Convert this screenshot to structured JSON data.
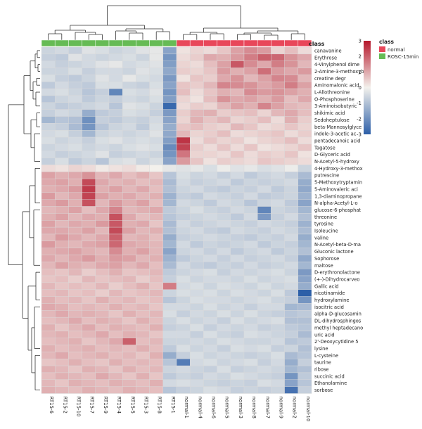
{
  "chart_data": {
    "type": "heatmap",
    "title": "",
    "annotation_label": "class",
    "annotation_legend_title": "class",
    "classes": [
      {
        "name": "normal",
        "color": "#e8475a"
      },
      {
        "name": "ROSC-15min",
        "color": "#66bb55"
      }
    ],
    "color_scale": {
      "min": -3,
      "max": 3,
      "ticks": [
        3,
        2,
        1,
        0,
        -1,
        -2,
        -3
      ],
      "low_color": "#2c5fa8",
      "mid_color": "#f3f1ec",
      "high_color": "#b5172b"
    },
    "columns": [
      "RT15-6",
      "RT15-2",
      "RT15-10",
      "RT15-7",
      "RT15-9",
      "RT15-4",
      "RT15-5",
      "RT15-3",
      "RT15-8",
      "RT15-1",
      "normal-1",
      "normal-4",
      "normal-6",
      "normal-5",
      "normal-3",
      "normal-8",
      "normal-7",
      "normal-9",
      "normal-2",
      "normal-10"
    ],
    "column_class": [
      "ROSC-15min",
      "ROSC-15min",
      "ROSC-15min",
      "ROSC-15min",
      "ROSC-15min",
      "ROSC-15min",
      "ROSC-15min",
      "ROSC-15min",
      "ROSC-15min",
      "ROSC-15min",
      "normal",
      "normal",
      "normal",
      "normal",
      "normal",
      "normal",
      "normal",
      "normal",
      "normal",
      "normal"
    ],
    "rows": [
      "canavanine",
      "Erythrose",
      "4-Vinylphenol dime",
      "2-Amine-3-methoxyb",
      "creatine degr",
      "Aminomalonic acid",
      "L-Allothreonine",
      "O-Phosphoserine",
      "3-Aminoisobutyric",
      "shikimic acid",
      "Sedoheptulose",
      "beta-Mannosylglyce",
      "indole-3-acetic ac",
      "pentadecanoic acid",
      "Tagatose",
      "D-Glyceric acid",
      "N-Acetyl-5-hydroxy",
      "4-Hydroxy-3-methox",
      "putrescine",
      "5-Methoxytryptamin",
      "5-Aminovaleric aci",
      "1,3-diaminopropane",
      "N-alpha-Acetyl-L-o",
      "glucose-6-phosphat",
      "threonine",
      "tyrosine",
      "Isoleucine",
      "valine",
      "N-Acetyl-beta-D-ma",
      "Gluconic lactone",
      "Sophorose",
      "maltose",
      "D-erythronolactone",
      "(+-)-Dihydrocarveo",
      "Gallic acid",
      "nicotinamide",
      "hydroxylamine",
      "isocitric acid",
      "alpha-D-glucosamin",
      "DL-dihydrosphingos",
      "methyl heptadecano",
      "uric acid",
      "2'-Deoxycytidine 5",
      "lysine",
      "L-cysteine",
      "taurine",
      "ribose",
      "succinic acid",
      "Ethanolamine",
      "sorbose"
    ],
    "values": [
      [
        -0.6,
        -0.5,
        -0.7,
        -0.3,
        -0.4,
        -0.6,
        -0.5,
        -0.3,
        -0.2,
        -1.6,
        0.2,
        0.4,
        0.3,
        0.6,
        1.1,
        1.4,
        1.2,
        0.4,
        0.7,
        0.3
      ],
      [
        -0.7,
        -0.8,
        -0.3,
        -0.5,
        -0.6,
        -0.5,
        -0.4,
        -0.6,
        -0.2,
        -1.9,
        0.3,
        0.5,
        1.0,
        0.9,
        1.2,
        1.6,
        2.0,
        1.9,
        1.3,
        1.0
      ],
      [
        -0.5,
        -0.7,
        -0.6,
        -0.5,
        -0.3,
        -0.2,
        -0.5,
        -0.4,
        -0.3,
        -1.7,
        0.4,
        0.3,
        0.7,
        1.1,
        2.1,
        1.4,
        1.0,
        1.6,
        1.3,
        0.8
      ],
      [
        -0.6,
        -0.6,
        -0.4,
        -0.7,
        -0.5,
        -0.5,
        -0.6,
        -0.3,
        -0.4,
        -1.5,
        0.5,
        0.4,
        0.6,
        1.2,
        0.9,
        1.1,
        1.8,
        1.2,
        1.0,
        1.2
      ],
      [
        -0.4,
        -0.7,
        -0.8,
        -0.6,
        -0.3,
        -0.5,
        -0.2,
        -0.4,
        -0.5,
        -1.8,
        0.2,
        0.6,
        0.5,
        1.0,
        1.3,
        0.8,
        1.1,
        1.5,
        1.4,
        0.8
      ],
      [
        -0.8,
        -0.5,
        -0.7,
        -0.8,
        -0.4,
        -0.4,
        -0.6,
        -0.7,
        -0.4,
        -1.6,
        0.6,
        0.5,
        0.8,
        1.5,
        1.4,
        1.3,
        1.0,
        1.2,
        1.6,
        1.1
      ],
      [
        -0.5,
        -0.4,
        -0.6,
        -0.9,
        -0.7,
        -2.2,
        -0.4,
        -0.5,
        -0.3,
        -1.9,
        0.7,
        0.3,
        0.6,
        0.9,
        0.8,
        1.4,
        1.2,
        1.3,
        1.1,
        0.9
      ],
      [
        -0.9,
        -0.6,
        -0.5,
        -0.8,
        -0.6,
        -0.7,
        -0.5,
        -0.6,
        -0.4,
        -1.7,
        0.4,
        0.2,
        0.7,
        1.3,
        1.0,
        1.1,
        0.9,
        1.2,
        0.7,
        1.0
      ],
      [
        -0.6,
        -0.8,
        -0.7,
        -0.6,
        -0.5,
        -0.9,
        -0.3,
        -0.4,
        -0.6,
        -2.8,
        0.3,
        0.5,
        0.4,
        0.8,
        1.1,
        0.9,
        1.5,
        1.1,
        0.8,
        0.7
      ],
      [
        -0.7,
        -0.5,
        -0.6,
        -1.4,
        -0.8,
        -0.7,
        -0.4,
        -0.5,
        -0.7,
        -1.8,
        0.5,
        0.8,
        0.9,
        0.5,
        0.6,
        0.7,
        0.4,
        0.8,
        1.0,
        0.7
      ],
      [
        -1.2,
        -0.9,
        -1.0,
        -2.0,
        -0.7,
        -0.8,
        -0.6,
        -0.7,
        -0.5,
        -1.6,
        0.4,
        0.9,
        0.6,
        0.8,
        0.4,
        0.5,
        0.7,
        0.3,
        0.9,
        0.5
      ],
      [
        -0.6,
        -0.7,
        -1.1,
        -1.9,
        -0.9,
        -0.6,
        -0.5,
        -0.8,
        -0.4,
        -1.4,
        0.6,
        0.7,
        0.5,
        0.4,
        0.8,
        0.6,
        0.3,
        0.4,
        0.6,
        0.4
      ],
      [
        -0.5,
        -0.4,
        -0.7,
        -1.2,
        -0.6,
        -0.5,
        -0.6,
        -0.5,
        -0.3,
        -1.5,
        0.8,
        0.4,
        0.5,
        0.7,
        0.3,
        0.4,
        0.5,
        0.6,
        0.3,
        0.5
      ],
      [
        -0.4,
        -0.6,
        -0.5,
        -0.7,
        -0.4,
        -0.3,
        -0.5,
        -0.4,
        -0.5,
        -1.7,
        2.6,
        0.3,
        0.6,
        0.4,
        0.5,
        0.2,
        0.4,
        0.5,
        0.7,
        0.3
      ],
      [
        -0.6,
        -0.5,
        -0.4,
        -0.6,
        -0.5,
        -0.6,
        -0.4,
        -0.3,
        -0.4,
        -2.1,
        2.4,
        0.5,
        0.3,
        0.6,
        0.3,
        0.6,
        0.2,
        0.3,
        0.4,
        0.6
      ],
      [
        -0.5,
        -0.7,
        -0.6,
        -0.5,
        -0.3,
        -0.7,
        -0.6,
        -0.5,
        -0.6,
        -1.9,
        1.7,
        0.4,
        0.4,
        0.3,
        0.6,
        0.3,
        0.5,
        0.4,
        0.6,
        0.2
      ],
      [
        -0.7,
        -0.4,
        -0.8,
        -0.6,
        -0.9,
        -0.4,
        -0.3,
        -0.6,
        -0.4,
        -1.6,
        1.2,
        0.6,
        0.2,
        0.5,
        0.4,
        0.3,
        0.6,
        0.5,
        0.4,
        0.3
      ],
      [
        0.3,
        0.2,
        0.4,
        0.3,
        0.1,
        0.2,
        0.3,
        0.1,
        0.0,
        -0.2,
        -0.3,
        -0.2,
        -0.4,
        -0.1,
        -0.3,
        -0.2,
        -0.4,
        -0.3,
        -0.1,
        -0.6
      ],
      [
        1.1,
        0.9,
        1.0,
        1.3,
        0.8,
        1.0,
        0.7,
        0.9,
        0.6,
        -0.9,
        -0.4,
        -0.6,
        -0.5,
        -0.7,
        -0.5,
        -0.8,
        -0.6,
        -0.5,
        -0.7,
        -1.1
      ],
      [
        1.0,
        1.1,
        0.9,
        2.3,
        1.0,
        0.8,
        0.9,
        0.7,
        0.8,
        -1.1,
        -0.5,
        -0.7,
        -0.6,
        -0.5,
        -0.8,
        -0.6,
        -0.7,
        -0.6,
        -0.5,
        -1.4
      ],
      [
        0.9,
        1.0,
        1.2,
        2.5,
        0.9,
        1.1,
        0.8,
        1.0,
        0.7,
        -1.0,
        -0.6,
        -0.5,
        -0.7,
        -0.8,
        -0.6,
        -0.7,
        -0.5,
        -0.8,
        -0.6,
        -1.5
      ],
      [
        1.2,
        0.8,
        1.0,
        2.4,
        1.1,
        0.9,
        1.0,
        0.8,
        0.9,
        -1.3,
        -0.7,
        -0.8,
        -0.5,
        -0.6,
        -0.7,
        -0.5,
        -0.8,
        -0.7,
        -0.6,
        -1.3
      ],
      [
        1.0,
        1.2,
        0.9,
        2.2,
        0.8,
        1.2,
        0.9,
        1.1,
        0.7,
        -1.2,
        -0.5,
        -0.6,
        -0.8,
        -0.5,
        -0.6,
        -0.9,
        -0.6,
        -0.5,
        -0.8,
        -1.6
      ],
      [
        0.8,
        0.9,
        1.1,
        0.7,
        1.0,
        1.5,
        0.8,
        0.9,
        1.0,
        -0.8,
        -0.6,
        -0.4,
        -0.6,
        -0.7,
        -0.5,
        -0.6,
        -2.2,
        -0.6,
        -0.7,
        -1.2
      ],
      [
        0.9,
        1.1,
        0.8,
        1.0,
        0.9,
        2.2,
        1.0,
        0.7,
        0.8,
        -0.9,
        -0.7,
        -0.6,
        -0.5,
        -0.6,
        -0.8,
        -0.5,
        -1.8,
        -0.7,
        -0.5,
        -1.0
      ],
      [
        1.1,
        0.8,
        1.0,
        0.9,
        1.2,
        2.1,
        0.9,
        1.0,
        0.6,
        -1.1,
        -0.5,
        -0.7,
        -0.6,
        -0.5,
        -0.6,
        -0.7,
        -0.5,
        -0.6,
        -0.7,
        -1.3
      ],
      [
        1.0,
        1.0,
        0.9,
        1.1,
        0.8,
        2.3,
        1.1,
        0.8,
        0.9,
        -1.0,
        -0.6,
        -0.5,
        -0.7,
        -0.8,
        -0.5,
        -0.6,
        -0.7,
        -0.5,
        -0.6,
        -1.1
      ],
      [
        0.8,
        1.2,
        1.0,
        0.8,
        1.0,
        2.0,
        0.8,
        0.9,
        0.7,
        -1.4,
        -0.7,
        -0.6,
        -0.5,
        -0.6,
        -0.7,
        -0.8,
        -0.6,
        -0.7,
        -0.5,
        -1.4
      ],
      [
        1.2,
        0.9,
        0.8,
        1.0,
        1.1,
        1.9,
        1.0,
        0.9,
        0.8,
        -1.2,
        -0.5,
        -0.8,
        -0.6,
        -0.7,
        -0.6,
        -0.5,
        -0.8,
        -0.6,
        -0.7,
        -1.2
      ],
      [
        0.9,
        1.0,
        1.1,
        0.9,
        0.8,
        1.4,
        0.9,
        1.1,
        0.8,
        -1.6,
        -0.6,
        -0.5,
        -0.7,
        -0.5,
        -0.8,
        -0.6,
        -0.5,
        -0.8,
        -0.6,
        -1.0
      ],
      [
        1.0,
        0.8,
        1.0,
        1.2,
        0.9,
        1.2,
        1.1,
        0.8,
        0.9,
        -1.3,
        -0.8,
        -0.6,
        -0.5,
        -0.7,
        -0.5,
        -0.7,
        -0.6,
        -0.5,
        -0.7,
        -1.5
      ],
      [
        0.8,
        1.1,
        0.9,
        0.8,
        1.0,
        1.1,
        0.8,
        1.0,
        0.7,
        -1.1,
        -0.5,
        -0.7,
        -0.8,
        -0.6,
        -0.7,
        -0.5,
        -0.7,
        -0.6,
        -0.5,
        -1.2
      ],
      [
        0.7,
        0.6,
        0.8,
        0.5,
        0.7,
        0.9,
        0.6,
        0.7,
        0.8,
        -0.8,
        -0.6,
        -0.5,
        -0.4,
        -0.7,
        -0.5,
        -0.6,
        -0.5,
        -0.4,
        -0.6,
        -1.8
      ],
      [
        0.6,
        0.7,
        0.5,
        0.8,
        0.6,
        0.7,
        0.8,
        0.5,
        0.7,
        -0.7,
        -0.4,
        -0.6,
        -0.5,
        -0.5,
        -0.6,
        -0.4,
        -0.6,
        -0.5,
        -0.4,
        -1.6
      ],
      [
        0.8,
        0.6,
        0.7,
        0.6,
        0.8,
        0.5,
        0.7,
        0.9,
        0.6,
        1.6,
        -0.5,
        -0.4,
        -0.6,
        -0.4,
        -0.5,
        -0.6,
        -0.4,
        -0.6,
        -0.5,
        -1.4
      ],
      [
        0.7,
        0.8,
        0.6,
        0.7,
        0.5,
        0.8,
        0.6,
        0.7,
        0.8,
        -0.6,
        -0.4,
        -0.5,
        -0.4,
        -0.6,
        -0.4,
        -0.5,
        -0.6,
        -0.4,
        -0.8,
        -3.0
      ],
      [
        0.9,
        0.7,
        0.8,
        0.6,
        0.9,
        0.7,
        0.8,
        0.6,
        0.7,
        -0.9,
        -0.6,
        -0.4,
        -0.5,
        -0.5,
        -0.6,
        -0.5,
        -0.4,
        -0.6,
        -0.7,
        -1.9
      ],
      [
        1.0,
        0.9,
        0.7,
        0.8,
        0.7,
        0.9,
        0.7,
        0.8,
        0.6,
        -0.5,
        -0.5,
        -0.6,
        -0.4,
        -0.6,
        -0.5,
        -0.7,
        -0.5,
        -0.5,
        -1.2,
        -1.1
      ],
      [
        0.8,
        1.0,
        0.8,
        0.9,
        0.8,
        0.6,
        0.9,
        0.7,
        0.8,
        -0.4,
        -0.7,
        -0.5,
        -0.6,
        -0.4,
        -0.6,
        -0.4,
        -0.6,
        -0.7,
        -0.9,
        -0.8
      ],
      [
        0.7,
        0.8,
        1.0,
        0.7,
        0.9,
        0.8,
        0.6,
        0.9,
        0.7,
        -0.6,
        -0.4,
        -0.6,
        -0.5,
        -0.7,
        -0.4,
        -0.6,
        -0.5,
        -0.4,
        -1.0,
        -1.0
      ],
      [
        0.9,
        0.6,
        0.8,
        1.0,
        0.7,
        0.9,
        0.8,
        0.7,
        0.9,
        -0.7,
        -0.6,
        -0.4,
        -0.7,
        -0.5,
        -0.6,
        -0.5,
        -0.7,
        -0.6,
        -0.8,
        -0.9
      ],
      [
        0.8,
        0.9,
        0.7,
        0.8,
        1.0,
        0.7,
        0.9,
        0.8,
        0.6,
        -0.5,
        -0.5,
        -0.7,
        -0.4,
        -0.6,
        -0.7,
        -0.4,
        -0.5,
        -0.6,
        -0.7,
        -1.1
      ],
      [
        0.7,
        0.8,
        0.9,
        0.6,
        0.8,
        1.0,
        2.0,
        0.7,
        0.8,
        -0.6,
        -0.6,
        -0.5,
        -0.6,
        -0.4,
        -0.5,
        -0.6,
        -0.6,
        -0.5,
        -0.9,
        -0.8
      ],
      [
        0.9,
        0.7,
        0.8,
        0.9,
        0.7,
        0.8,
        0.7,
        0.9,
        0.7,
        -0.8,
        -0.4,
        -0.6,
        -0.5,
        -0.7,
        -0.4,
        -0.5,
        -0.4,
        -0.7,
        -0.6,
        -1.0
      ],
      [
        0.8,
        1.0,
        0.7,
        0.8,
        0.9,
        0.7,
        0.8,
        0.6,
        0.9,
        -1.4,
        -0.7,
        -0.4,
        -0.6,
        -0.5,
        -0.6,
        -0.7,
        -0.6,
        -0.4,
        -1.1,
        -0.9
      ],
      [
        0.6,
        0.7,
        0.9,
        0.7,
        0.6,
        0.9,
        0.7,
        0.8,
        0.7,
        -0.9,
        -2.4,
        -0.5,
        -0.4,
        -0.6,
        -0.5,
        -0.4,
        -0.7,
        -0.5,
        -1.4,
        -0.7
      ],
      [
        0.9,
        0.8,
        0.6,
        0.9,
        0.8,
        0.6,
        0.9,
        0.7,
        0.8,
        -0.6,
        -0.5,
        -0.6,
        -0.7,
        -0.4,
        -0.7,
        -0.6,
        -0.5,
        -0.6,
        -1.2,
        -1.0
      ],
      [
        0.7,
        0.9,
        0.8,
        0.7,
        1.0,
        0.8,
        0.6,
        0.9,
        0.6,
        -0.8,
        -0.6,
        -0.7,
        -0.5,
        -0.6,
        -0.4,
        -0.5,
        -0.6,
        -0.7,
        -1.9,
        -0.8
      ],
      [
        0.8,
        0.6,
        0.9,
        0.8,
        0.7,
        0.9,
        0.8,
        0.7,
        0.9,
        -0.5,
        -0.4,
        -0.5,
        -0.6,
        -0.7,
        -0.6,
        -0.7,
        -0.4,
        -0.5,
        -1.6,
        -0.9
      ],
      [
        0.9,
        0.8,
        0.7,
        0.9,
        0.8,
        0.7,
        0.9,
        0.8,
        0.7,
        -0.9,
        -0.7,
        -0.6,
        -0.4,
        -0.5,
        -0.7,
        -0.6,
        -0.7,
        -0.6,
        -2.6,
        -0.7
      ]
    ]
  }
}
